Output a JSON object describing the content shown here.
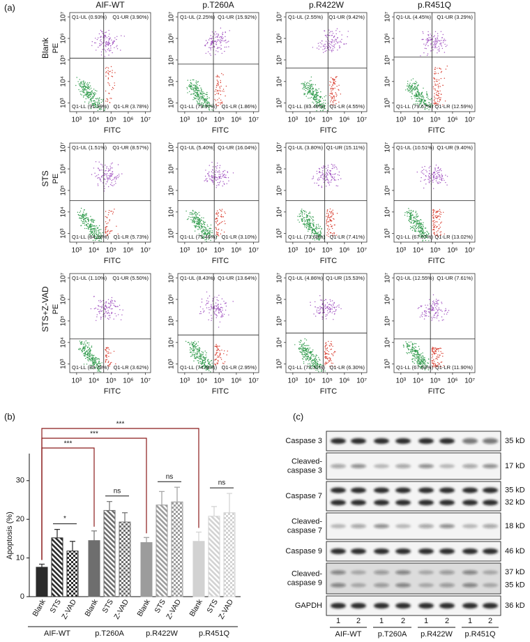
{
  "panels": {
    "a": {
      "label": "(a)",
      "columns": [
        "AIF-WT",
        "p.T260A",
        "p.R422W",
        "p.R451Q"
      ],
      "rows": [
        "Blank",
        "STS",
        "STS+Z-VAD"
      ],
      "x_axis_label": "FITC",
      "y_axis_label": "PE",
      "xlim": [
        2.6,
        7.3
      ],
      "ylim": [
        2.6,
        7.2
      ],
      "ticks": [
        {
          "value": 3,
          "label": "10³"
        },
        {
          "value": 4,
          "label": "10⁴"
        },
        {
          "value": 5,
          "label": "10⁵"
        },
        {
          "value": 6,
          "label": "10⁶"
        },
        {
          "value": 7,
          "label": "10⁷"
        }
      ],
      "plots": [
        [
          {
            "UL": "Q1-UL (0.93%)",
            "UR": "Q1-UR (3.90%)",
            "LL": "Q1-LL (91.39%)",
            "LR": "Q1-LR (3.78%)"
          },
          {
            "UL": "Q1-UL (2.25%)",
            "UR": "Q1-UR (15.92%)",
            "LL": "Q1-LL (79.97%)",
            "LR": "Q1-LR (1.86%)"
          },
          {
            "UL": "Q1-UL (2.55%)",
            "UR": "Q1-UR (9.42%)",
            "LL": "Q1-LL (83.49%)",
            "LR": "Q1-LR (4.55%)"
          },
          {
            "UL": "Q1-UL (4.45%)",
            "UR": "Q1-UR (3.29%)",
            "LL": "Q1-LL (79.67%)",
            "LR": "Q1-LR (12.59%)"
          }
        ],
        [
          {
            "UL": "Q1-UL (1.51%)",
            "UR": "Q1-UR (8.57%)",
            "LL": "Q1-LL (84.18%)",
            "LR": "Q1-LR (5.73%)"
          },
          {
            "UL": "Q1-UL (5.40%)",
            "UR": "Q1-UR (16.04%)",
            "LL": "Q1-LL (75.46%)",
            "LR": "Q1-LR (3.10%)"
          },
          {
            "UL": "Q1-UL (3.80%)",
            "UR": "Q1-UR (15.11%)",
            "LL": "Q1-LL (73.68%)",
            "LR": "Q1-LR (7.41%)"
          },
          {
            "UL": "Q1-UL (10.51%)",
            "UR": "Q1-UR (9.40%)",
            "LL": "Q1-LL (67.07%)",
            "LR": "Q1-LR (13.02%)"
          }
        ],
        [
          {
            "UL": "Q1-UL (1.10%)",
            "UR": "Q1-UR (5.50%)",
            "LL": "Q1-LL (89.78%)",
            "LR": "Q1-LR (3.62%)"
          },
          {
            "UL": "Q1-UL (8.43%)",
            "UR": "Q1-UR (13.64%)",
            "LL": "Q1-LL (74.98%)",
            "LR": "Q1-LR (2.95%)"
          },
          {
            "UL": "Q1-UL (4.86%)",
            "UR": "Q1-UR (15.53%)",
            "LL": "Q1-LL (73.31%)",
            "LR": "Q1-LR (6.30%)"
          },
          {
            "UL": "Q1-UL (12.55%)",
            "UR": "Q1-UR (7.61%)",
            "LL": "Q1-LL (67.93%)",
            "LR": "Q1-LR (11.90%)"
          }
        ]
      ]
    },
    "b": {
      "label": "(b)",
      "type": "bar",
      "y_axis_label": "Apoptosis (%)",
      "ylim": [
        0,
        37
      ],
      "yticks": [
        0,
        10,
        20,
        30
      ],
      "categories": [
        "Blank",
        "STS",
        "Z-VAD"
      ],
      "groups": [
        {
          "name": "AIF-WT",
          "color": "#2b2b2b",
          "values": [
            7.6,
            15.2,
            11.8
          ],
          "errors": [
            0.8,
            2.2,
            2.5
          ]
        },
        {
          "name": "p.T260A",
          "color": "#6e6e6e",
          "values": [
            14.5,
            22.3,
            19.3
          ],
          "errors": [
            2.5,
            2.3,
            2.4
          ]
        },
        {
          "name": "p.R422W",
          "color": "#9c9c9c",
          "values": [
            14.0,
            23.7,
            24.5
          ],
          "errors": [
            1.3,
            3.5,
            3.8
          ]
        },
        {
          "name": "p.R451Q",
          "color": "#d2d2d2",
          "values": [
            14.3,
            20.8,
            21.7
          ],
          "errors": [
            2.4,
            2.5,
            5.0
          ]
        }
      ],
      "brackets": [
        "***",
        "***",
        "***"
      ],
      "pairs": [
        "*",
        "ns",
        "ns",
        "ns"
      ]
    },
    "c": {
      "label": "(c)",
      "rows": [
        {
          "name": [
            "Caspase 3"
          ],
          "sizes": [
            "35 kD"
          ]
        },
        {
          "name": [
            "Cleaved-",
            "caspase 3"
          ],
          "sizes": [
            "17 kD"
          ]
        },
        {
          "name": [
            "Caspase 7"
          ],
          "sizes": [
            "35 kD",
            "32 kD"
          ]
        },
        {
          "name": [
            "Cleaved-",
            "caspase 7"
          ],
          "sizes": [
            "18 kD"
          ]
        },
        {
          "name": [
            "Caspase 9"
          ],
          "sizes": [
            "46 kD"
          ]
        },
        {
          "name": [
            "Cleaved-",
            "caspase 9"
          ],
          "sizes": [
            "37 kD",
            "35 kD"
          ]
        },
        {
          "name": [
            "GAPDH"
          ],
          "sizes": [
            "36 kD"
          ]
        }
      ],
      "lanes": [
        "1",
        "2"
      ],
      "groups": [
        "AIF-WT",
        "p.T260A",
        "p.R422W",
        "p.R451Q"
      ]
    }
  }
}
